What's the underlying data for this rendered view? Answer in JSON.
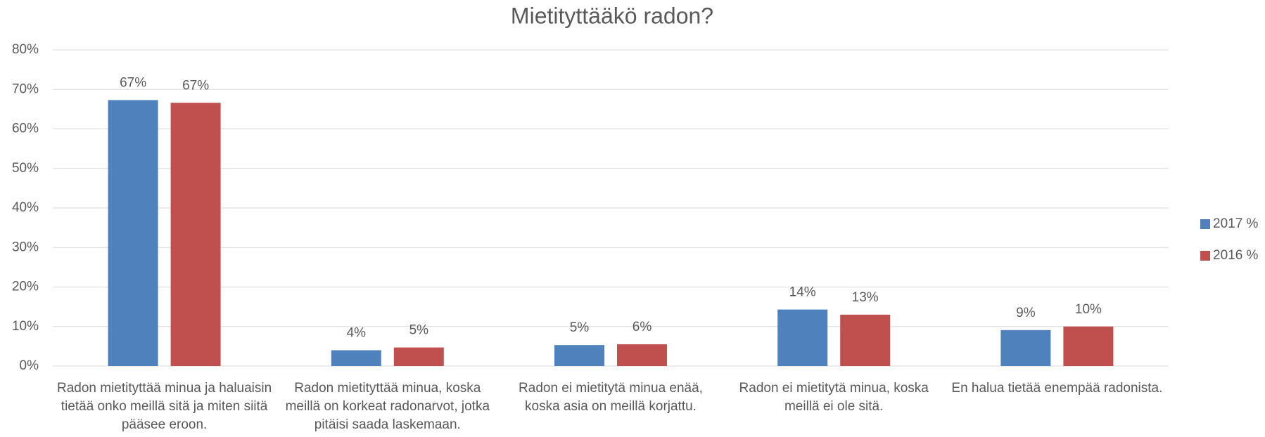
{
  "chart_data": {
    "type": "bar",
    "title": "Mietityttääkö radon?",
    "categories": [
      "Radon mietityttää minua ja haluaisin tietää onko meillä sitä ja miten siitä pääsee eroon.",
      "Radon mietityttää minua, koska meillä on korkeat radonarvot, jotka pitäisi saada laskemaan.",
      "Radon ei mietitytä minua enää, koska asia on meillä korjattu.",
      "Radon ei mietitytä minua, koska meillä ei ole sitä.",
      "En halua tietää enempää radonista."
    ],
    "series": [
      {
        "name": "2017 %",
        "color": "#4f81bd",
        "values": [
          67.3,
          4,
          5.3,
          14.3,
          9.1
        ],
        "value_labels": [
          "67%",
          "4%",
          "5%",
          "14%",
          "9%"
        ]
      },
      {
        "name": "2016 %",
        "color": "#c0504d",
        "values": [
          66.6,
          4.7,
          5.5,
          13,
          10
        ],
        "value_labels": [
          "67%",
          "5%",
          "6%",
          "13%",
          "10%"
        ]
      }
    ],
    "ylim": [
      0,
      80
    ],
    "yticks": [
      {
        "value": 0,
        "label": "0%"
      },
      {
        "value": 10,
        "label": "10%"
      },
      {
        "value": 20,
        "label": "20%"
      },
      {
        "value": 30,
        "label": "30%"
      },
      {
        "value": 40,
        "label": "40%"
      },
      {
        "value": 50,
        "label": "50%"
      },
      {
        "value": 60,
        "label": "60%"
      },
      {
        "value": 70,
        "label": "70%"
      },
      {
        "value": 80,
        "label": "80%"
      }
    ],
    "grid": true,
    "legend": "right"
  }
}
